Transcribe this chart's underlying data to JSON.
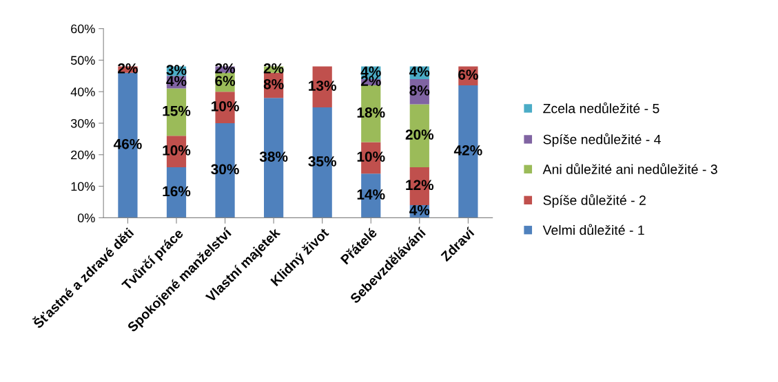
{
  "chart_data": {
    "type": "bar",
    "stacked": true,
    "categories": [
      "Šťastné a zdravé děti",
      "Tvůrčí práce",
      "Spokojené manželství",
      "Vlastní majetek",
      "Klidný život",
      "Přátelé",
      "Sebevzdělávání",
      "Zdraví"
    ],
    "series": [
      {
        "name": "Velmi důležité - 1",
        "color": "#4f81bd",
        "values": [
          46,
          16,
          30,
          38,
          35,
          14,
          4,
          42
        ],
        "value_labels": [
          "46%",
          "16%",
          "30%",
          "38%",
          "35%",
          "14%",
          "4%",
          "42%"
        ]
      },
      {
        "name": "Spíše důležité - 2",
        "color": "#c0504d",
        "values": [
          2,
          10,
          10,
          8,
          13,
          10,
          12,
          6
        ],
        "value_labels": [
          "2%",
          "10%",
          "10%",
          "8%",
          "13%",
          "10%",
          "12%",
          "6%"
        ]
      },
      {
        "name": "Ani důležité ani nedůležité - 3",
        "color": "#9bbb59",
        "values": [
          null,
          15,
          6,
          2,
          null,
          18,
          20,
          null
        ],
        "value_labels": [
          null,
          "15%",
          "6%",
          "2%",
          null,
          "18%",
          "20%",
          null
        ]
      },
      {
        "name": "Spíše nedůležité - 4",
        "color": "#8064a2",
        "values": [
          null,
          4,
          2,
          null,
          null,
          2,
          8,
          null
        ],
        "value_labels": [
          null,
          "4%",
          "2%",
          null,
          null,
          "2%",
          "8%",
          null
        ]
      },
      {
        "name": "Zcela nedůležité - 5",
        "color": "#4bacc6",
        "values": [
          null,
          3,
          null,
          null,
          null,
          4,
          4,
          null
        ],
        "value_labels": [
          null,
          "3%",
          null,
          null,
          null,
          "4%",
          "4%",
          null
        ]
      }
    ],
    "ylim": [
      0,
      60
    ],
    "yticks": [
      {
        "value": 0,
        "label": "0%"
      },
      {
        "value": 10,
        "label": "10%"
      },
      {
        "value": 20,
        "label": "20%"
      },
      {
        "value": 30,
        "label": "30%"
      },
      {
        "value": 40,
        "label": "40%"
      },
      {
        "value": 50,
        "label": "50%"
      },
      {
        "value": 60,
        "label": "60%"
      }
    ],
    "grid": false,
    "legend": "right"
  }
}
